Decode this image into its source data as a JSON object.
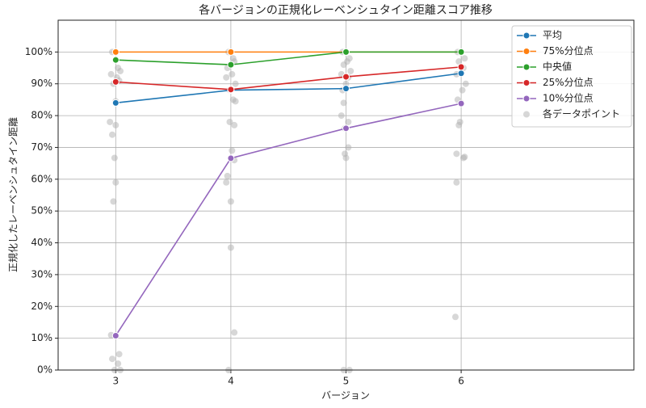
{
  "chart_data": {
    "type": "line",
    "title": "各バージョンの正規化レーベンシュタイン距離スコア推移",
    "xlabel": "バージョン",
    "ylabel": "正規化したレーベンシュタイン距離",
    "x": [
      3,
      4,
      5,
      6
    ],
    "xlim": [
      2.5,
      7.5
    ],
    "xticks": [
      3,
      4,
      5,
      6
    ],
    "ylim": [
      0,
      110
    ],
    "yticks": [
      {
        "value": 0,
        "label": "0%"
      },
      {
        "value": 10,
        "label": "10%"
      },
      {
        "value": 20,
        "label": "20%"
      },
      {
        "value": 30,
        "label": "30%"
      },
      {
        "value": 40,
        "label": "40%"
      },
      {
        "value": 50,
        "label": "50%"
      },
      {
        "value": 60,
        "label": "60%"
      },
      {
        "value": 70,
        "label": "70%"
      },
      {
        "value": 80,
        "label": "80%"
      },
      {
        "value": 90,
        "label": "90%"
      },
      {
        "value": 100,
        "label": "100%"
      }
    ],
    "grid": true,
    "legend": "upper right",
    "series": [
      {
        "name": "平均",
        "color": "#1f77b4",
        "values": [
          84,
          88,
          88.5,
          93.3
        ]
      },
      {
        "name": "75%分位点",
        "color": "#ff7f0e",
        "values": [
          100,
          100,
          100,
          100
        ]
      },
      {
        "name": "中央値",
        "color": "#2ca02c",
        "values": [
          97.5,
          96,
          100,
          100
        ]
      },
      {
        "name": "25%分位点",
        "color": "#d62728",
        "values": [
          90.6,
          88.2,
          92.2,
          95.3
        ]
      },
      {
        "name": "10%分位点",
        "color": "#9467bd",
        "values": [
          10.8,
          66.6,
          76,
          83.8
        ]
      }
    ],
    "scatter": {
      "name": "各データポイント",
      "color": "#b0b0b0",
      "x": [
        2.97,
        3.02,
        3.04,
        2.96,
        3.01,
        3.03,
        2.98,
        3.0,
        2.95,
        3.0,
        2.97,
        2.99,
        3.0,
        2.98,
        2.96,
        2.97,
        3.03,
        3.02,
        2.99,
        3.04,
        3.98,
        4.02,
        4.03,
        3.97,
        4.01,
        3.96,
        4.04,
        3.99,
        4.02,
        4.04,
        3.99,
        4.03,
        4.01,
        4.03,
        3.97,
        3.96,
        4.0,
        4.0,
        4.03,
        3.98,
        4.97,
        5.03,
        5.01,
        4.98,
        5.04,
        4.96,
        5.02,
        5.0,
        4.97,
        4.98,
        4.96,
        5.02,
        4.99,
        5.02,
        4.99,
        5.0,
        4.98,
        5.03,
        5.97,
        6.03,
        5.98,
        6.02,
        5.96,
        6.04,
        6.01,
        5.97,
        6.0,
        5.99,
        5.98,
        5.96,
        6.03,
        6.02,
        5.96,
        5.95
      ],
      "values": [
        100,
        95,
        94,
        93,
        92,
        91,
        90,
        84.5,
        78,
        77,
        74,
        66.7,
        59,
        53,
        11,
        3.5,
        5,
        2,
        0,
        0,
        100,
        98,
        97,
        95,
        93,
        92,
        90,
        88,
        85,
        84.5,
        78,
        77,
        69,
        66,
        61,
        59,
        53,
        38.5,
        11.8,
        0,
        100,
        98,
        97,
        96,
        94,
        93,
        92,
        90,
        88,
        84,
        80,
        78,
        76,
        70,
        68,
        66.7,
        0,
        0,
        100,
        98,
        97,
        95,
        93,
        90,
        88,
        85,
        84,
        78,
        77,
        68,
        67,
        66.7,
        59,
        16.7
      ]
    }
  }
}
